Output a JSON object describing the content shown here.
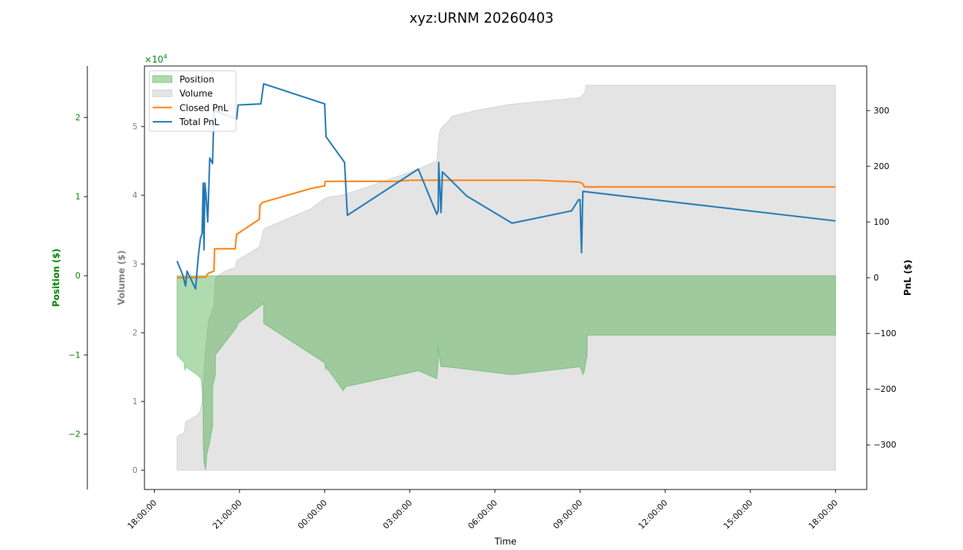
{
  "chart_data": {
    "type": "line",
    "title": "xyz:URNM 20260403",
    "xlabel": "Time",
    "grid": false,
    "legend_placement": "top-left",
    "x_ticks": [
      "18:00:00",
      "21:00:00",
      "00:00:00",
      "03:00:00",
      "06:00:00",
      "09:00:00",
      "12:00:00",
      "15:00:00",
      "18:00:00"
    ],
    "x_tick_hours": [
      0,
      3,
      6,
      9,
      12,
      15,
      18,
      21,
      24
    ],
    "xlim_hours": [
      -0.35,
      25.1
    ],
    "colors": {
      "position": "#2ca02c",
      "volume": "#b4b4b4",
      "closed_pnl": "#ff7f0e",
      "total_pnl": "#1f77b4",
      "position_axis": "#008000",
      "volume_axis": "#808080",
      "pnl_axis": "#000000"
    },
    "axes": {
      "position": {
        "label": "Position ($)",
        "multiplier_label": "×10",
        "multiplier_exponent": "4",
        "ticks": [
          -2,
          -1,
          0,
          1,
          2
        ],
        "tick_labels": [
          "−2",
          "−1",
          "0",
          "1",
          "2"
        ],
        "ylim": [
          -2.7,
          2.65
        ]
      },
      "volume": {
        "label": "Volume ($)",
        "ticks": [
          0,
          1,
          2,
          3,
          4,
          5
        ],
        "tick_labels": [
          "0",
          "1",
          "2",
          "3",
          "4",
          "5"
        ],
        "ylim": [
          -0.28,
          5.88
        ]
      },
      "pnl": {
        "label": "PnL ($)",
        "ticks": [
          -300,
          -200,
          -100,
          0,
          100,
          200,
          300
        ],
        "tick_labels": [
          "−300",
          "−200",
          "−100",
          "0",
          "100",
          "200",
          "300"
        ],
        "ylim": [
          -380,
          380
        ]
      }
    },
    "legend": [
      {
        "key": "position",
        "label": "Position",
        "kind": "area"
      },
      {
        "key": "volume",
        "label": "Volume",
        "kind": "area"
      },
      {
        "key": "closed_pnl",
        "label": "Closed PnL",
        "kind": "line"
      },
      {
        "key": "total_pnl",
        "label": "Total PnL",
        "kind": "line"
      }
    ],
    "series": {
      "position": {
        "name": "Position",
        "axis": "position",
        "x": [
          0.8,
          0.8,
          1.05,
          1.08,
          1.1,
          1.5,
          1.65,
          1.7,
          1.72,
          1.73,
          1.75,
          1.8,
          1.82,
          1.85,
          1.95,
          2.05,
          2.05,
          2.15,
          2.15,
          2.9,
          2.95,
          3.85,
          3.85,
          6.0,
          6.05,
          6.05,
          6.65,
          6.75,
          9.3,
          9.95,
          10.0,
          10.0,
          10.05,
          10.1,
          10.15,
          10.3,
          10.3,
          12.6,
          15.0,
          15.05,
          15.1,
          15.15,
          15.25,
          15.25,
          24.0,
          24.0
        ],
        "y": [
          0.0,
          -1.0,
          -1.1,
          -1.2,
          -1.15,
          -1.25,
          -1.3,
          -1.5,
          -1.8,
          -2.2,
          -2.35,
          -2.45,
          -2.4,
          -2.25,
          -2.1,
          -1.9,
          -1.4,
          -1.25,
          -1.0,
          -0.65,
          -0.6,
          -0.35,
          -0.6,
          -1.1,
          -1.2,
          -1.15,
          -1.45,
          -1.4,
          -1.2,
          -1.3,
          -1.1,
          -0.9,
          -1.05,
          -1.15,
          -1.15,
          -1.15,
          -1.15,
          -1.25,
          -1.15,
          -1.2,
          -1.25,
          -1.2,
          -1.0,
          -0.75,
          -0.75,
          0.0
        ]
      },
      "volume": {
        "name": "Volume",
        "axis": "volume",
        "x": [
          0.8,
          0.8,
          1.05,
          1.1,
          1.5,
          1.6,
          1.68,
          1.75,
          1.8,
          1.9,
          2.1,
          2.15,
          2.5,
          2.85,
          2.9,
          3.7,
          3.85,
          3.9,
          5.5,
          6.0,
          6.1,
          6.6,
          7.5,
          9.3,
          9.95,
          10.0,
          10.05,
          10.15,
          10.3,
          10.5,
          11.3,
          12.5,
          15.0,
          15.05,
          15.1,
          15.15,
          15.2,
          15.2,
          24.0,
          24.0
        ],
        "y": [
          0.0,
          0.49,
          0.55,
          0.7,
          0.8,
          0.85,
          1.0,
          1.4,
          1.75,
          2.15,
          2.4,
          2.8,
          2.9,
          2.95,
          3.05,
          3.25,
          3.5,
          3.52,
          3.8,
          3.95,
          3.97,
          4.0,
          4.12,
          4.38,
          4.5,
          4.75,
          4.92,
          5.0,
          5.05,
          5.15,
          5.23,
          5.32,
          5.42,
          5.44,
          5.46,
          5.48,
          5.55,
          5.6,
          5.6,
          0.0
        ]
      },
      "closed_pnl": {
        "name": "Closed PnL",
        "axis": "pnl",
        "x": [
          0.8,
          1.0,
          1.8,
          1.9,
          2.1,
          2.12,
          2.85,
          2.88,
          2.9,
          3.7,
          3.72,
          3.8,
          5.5,
          6.0,
          6.02,
          8.5,
          9.0,
          12.6,
          13.5,
          14.9,
          15.0,
          15.05,
          15.1,
          15.15,
          24.0
        ],
        "y": [
          0,
          0,
          1,
          8,
          12,
          52,
          52,
          70,
          78,
          105,
          130,
          135,
          160,
          165,
          173,
          173,
          175,
          175,
          175,
          172,
          171,
          170,
          168,
          163,
          163
        ]
      },
      "total_pnl": {
        "name": "Total PnL",
        "axis": "pnl",
        "x": [
          0.8,
          1.0,
          1.1,
          1.15,
          1.45,
          1.55,
          1.62,
          1.68,
          1.72,
          1.75,
          1.78,
          1.82,
          1.88,
          1.95,
          2.05,
          2.1,
          2.9,
          2.95,
          3.75,
          3.85,
          6.0,
          6.05,
          6.7,
          6.8,
          9.3,
          9.95,
          10.0,
          10.02,
          10.1,
          10.15,
          11.0,
          12.6,
          14.7,
          14.95,
          15.0,
          15.05,
          15.1,
          24.0
        ],
        "y": [
          30,
          5,
          -15,
          12,
          -20,
          40,
          70,
          80,
          170,
          50,
          170,
          150,
          100,
          215,
          205,
          300,
          285,
          310,
          312,
          348,
          312,
          253,
          207,
          112,
          195,
          114,
          120,
          207,
          117,
          190,
          147,
          98,
          120,
          140,
          140,
          45,
          155,
          102
        ]
      }
    }
  }
}
